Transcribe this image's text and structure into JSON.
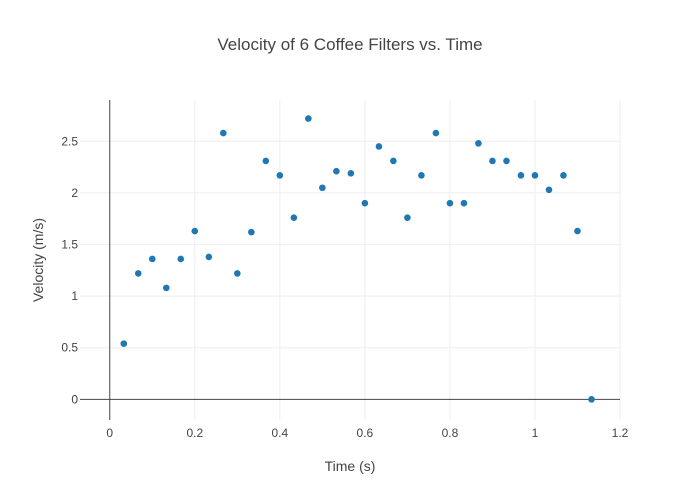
{
  "chart_data": {
    "type": "scatter",
    "title": "Velocity of 6 Coffee Filters vs. Time",
    "xlabel": "Time (s)",
    "ylabel": "Velocity (m/s)",
    "xlim": [
      -0.07,
      1.2
    ],
    "ylim": [
      -0.2,
      2.9
    ],
    "x_ticks": [
      0,
      0.2,
      0.4,
      0.6,
      0.8,
      1,
      1.2
    ],
    "x_tick_labels": [
      "0",
      "0.2",
      "0.4",
      "0.6",
      "0.8",
      "1",
      "1.2"
    ],
    "y_ticks": [
      0,
      0.5,
      1,
      1.5,
      2,
      2.5
    ],
    "y_tick_labels": [
      "0",
      "0.5",
      "1",
      "1.5",
      "2",
      "2.5"
    ],
    "grid": true,
    "marker_color": "#1f77b4",
    "series": [
      {
        "x": [
          0.033,
          0.067,
          0.1,
          0.133,
          0.167,
          0.2,
          0.233,
          0.267,
          0.3,
          0.333,
          0.367,
          0.4,
          0.433,
          0.467,
          0.5,
          0.533,
          0.567,
          0.6,
          0.633,
          0.667,
          0.7,
          0.733,
          0.767,
          0.8,
          0.833,
          0.867,
          0.9,
          0.933,
          0.967,
          1.0,
          1.033,
          1.067,
          1.1,
          1.133
        ],
        "y": [
          0.54,
          1.22,
          1.36,
          1.08,
          1.36,
          1.63,
          1.38,
          2.58,
          1.22,
          1.62,
          2.31,
          2.17,
          1.76,
          2.72,
          2.05,
          2.21,
          2.19,
          1.9,
          2.45,
          2.31,
          1.76,
          2.17,
          2.58,
          1.9,
          1.9,
          2.48,
          2.31,
          2.31,
          2.17,
          2.17,
          2.03,
          2.17,
          1.63,
          0.0
        ]
      }
    ]
  }
}
